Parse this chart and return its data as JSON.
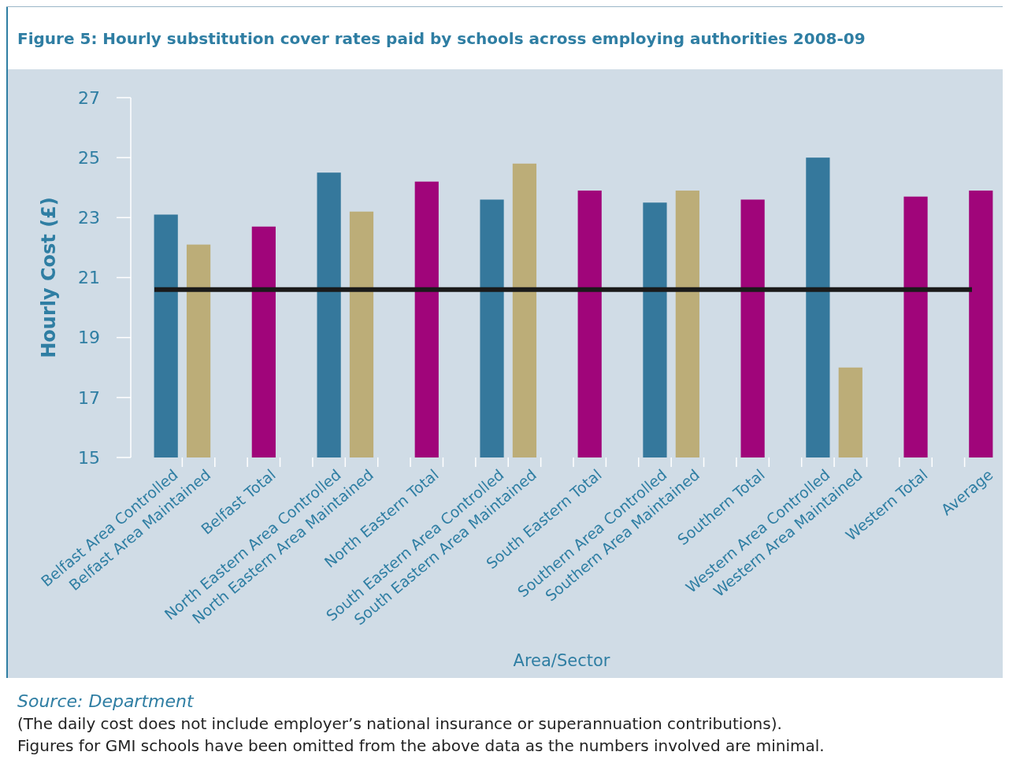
{
  "chart_data": {
    "type": "bar",
    "title": "Figure 5: Hourly substitution cover rates paid by schools across employing authorities 2008-09",
    "xlabel": "Area/Sector",
    "ylabel": "Hourly Cost (£)",
    "categories": [
      "Belfast Area Controlled",
      "Belfast Area Maintained",
      null,
      "Belfast Total",
      null,
      "North Eastern Area Controlled",
      "North Eastern Area Maintained",
      null,
      "North Eastern Total",
      null,
      "South Eastern Area Controlled",
      "South Eastern Area Maintained",
      null,
      "South Eastern Total",
      null,
      "Southern Area Controlled",
      "Southern Area Maintained",
      null,
      "Southern Total",
      null,
      "Western Area Controlled",
      "Western Area Maintained",
      null,
      "Western Total",
      null,
      "Average"
    ],
    "values": [
      23.1,
      22.1,
      null,
      22.7,
      null,
      24.5,
      23.2,
      null,
      24.2,
      null,
      23.6,
      24.8,
      null,
      23.9,
      null,
      23.5,
      23.9,
      null,
      23.6,
      null,
      25.0,
      18.0,
      null,
      23.7,
      null,
      23.9
    ],
    "colors": [
      "#35789c",
      "#bcad78",
      null,
      "#a0057a",
      null,
      "#35789c",
      "#bcad78",
      null,
      "#a0057a",
      null,
      "#35789c",
      "#bcad78",
      null,
      "#a0057a",
      null,
      "#35789c",
      "#bcad78",
      null,
      "#a0057a",
      null,
      "#35789c",
      "#bcad78",
      null,
      "#a0057a",
      null,
      "#a0057a"
    ],
    "ylim": [
      15,
      27
    ],
    "yticks": [
      15,
      17,
      19,
      21,
      23,
      25,
      27
    ],
    "ref_lines": [
      {
        "axis": "y",
        "value": 20.6,
        "color": "#1a1a1a"
      }
    ],
    "annotations": [
      "Source: Department",
      "(The daily cost does not include employer’s national insurance or superannuation contributions).",
      "Figures for GMI schools have been omitted from the above data as the numbers involved are minimal."
    ]
  }
}
